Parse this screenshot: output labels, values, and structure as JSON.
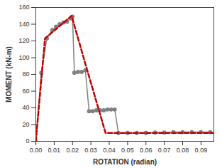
{
  "chart_data": {
    "type": "line",
    "xlabel": "ROTATION (radian)",
    "ylabel": "MOMENT (kN-m)",
    "series": [
      {
        "color": "#808080",
        "marker": "circle",
        "line_style": "solid",
        "x": [
          0,
          0.003,
          0.006,
          0.009,
          0.011,
          0.013,
          0.015,
          0.017,
          0.019,
          0.02,
          0.021,
          0.023,
          0.025,
          0.027,
          0.029,
          0.031,
          0.033,
          0.035,
          0.037,
          0.039,
          0.041,
          0.043,
          0.045,
          0.05,
          0.055,
          0.06,
          0.065,
          0.07,
          0.075,
          0.08,
          0.085,
          0.09,
          0.095
        ],
        "values": [
          0,
          82,
          123,
          133,
          137,
          140,
          142,
          143,
          147,
          149,
          82,
          83,
          83,
          85,
          36,
          36,
          37,
          37,
          37,
          38,
          38,
          38,
          10,
          10,
          10,
          10,
          10.5,
          10.5,
          11,
          11,
          11,
          11,
          11
        ]
      },
      {
        "color": "#c00000",
        "line_style": "dashed",
        "x": [
          0,
          0.005,
          0.0195,
          0.028,
          0.038,
          0.097
        ],
        "values": [
          0,
          123,
          150,
          85,
          10,
          10
        ]
      }
    ],
    "xlim": [
      0,
      0.097
    ],
    "xticks": [
      {
        "value": 0,
        "label": "0.00"
      },
      {
        "value": 0.01,
        "label": "0.01"
      },
      {
        "value": 0.02,
        "label": "0.02"
      },
      {
        "value": 0.03,
        "label": "0.03"
      },
      {
        "value": 0.04,
        "label": "0.04"
      },
      {
        "value": 0.05,
        "label": "0.05"
      },
      {
        "value": 0.06,
        "label": "0.06"
      },
      {
        "value": 0.07,
        "label": "0.07"
      },
      {
        "value": 0.08,
        "label": "0.08"
      },
      {
        "value": 0.09,
        "label": "0.09"
      }
    ],
    "ylim": [
      0,
      160
    ],
    "yticks": [
      0,
      20,
      40,
      60,
      80,
      100,
      120,
      140,
      160
    ],
    "grid": false
  }
}
